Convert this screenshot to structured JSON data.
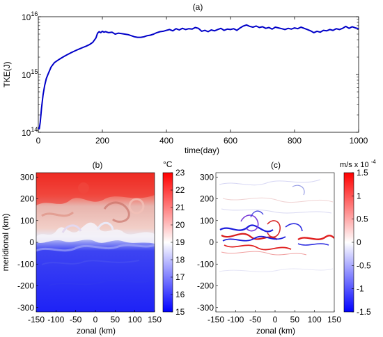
{
  "chart_data": [
    {
      "type": "line",
      "title": "(a)",
      "xlabel": "time(day)",
      "ylabel": "TKE(J)",
      "xlim": [
        0,
        1000
      ],
      "ylim": [
        100000000000000.0,
        1e+16
      ],
      "yscale": "log",
      "grid": false,
      "xticks": [
        "0",
        "200",
        "400",
        "600",
        "800",
        "1000"
      ],
      "yticks": [
        {
          "base": "10",
          "exp": "14"
        },
        {
          "base": "10",
          "exp": "15"
        },
        {
          "base": "10",
          "exp": "16"
        }
      ],
      "series": [
        {
          "color": "#0000c8",
          "x": [
            0,
            3,
            6,
            10,
            15,
            20,
            25,
            30,
            40,
            50,
            60,
            70,
            80,
            90,
            100,
            110,
            120,
            130,
            140,
            150,
            160,
            170,
            180,
            185,
            190,
            195,
            200,
            205,
            210,
            220,
            230,
            240,
            250,
            260,
            270,
            280,
            290,
            300,
            310,
            320,
            330,
            340,
            350,
            360,
            370,
            380,
            390,
            400,
            410,
            420,
            430,
            440,
            450,
            460,
            470,
            480,
            490,
            500,
            510,
            520,
            530,
            540,
            550,
            560,
            570,
            580,
            590,
            600,
            610,
            620,
            630,
            640,
            650,
            660,
            670,
            680,
            690,
            700,
            710,
            720,
            730,
            740,
            750,
            760,
            770,
            780,
            790,
            800,
            810,
            820,
            830,
            840,
            850,
            860,
            870,
            880,
            890,
            900,
            910,
            920,
            930,
            940,
            950,
            960,
            970,
            980,
            990,
            1000
          ],
          "y": [
            120000000000000.0,
            115000000000000.0,
            150000000000000.0,
            260000000000000.0,
            450000000000000.0,
            650000000000000.0,
            850000000000000.0,
            1000000000000000.0,
            1350000000000000.0,
            1600000000000000.0,
            1750000000000000.0,
            1900000000000000.0,
            2050000000000000.0,
            2200000000000000.0,
            2350000000000000.0,
            2500000000000000.0,
            2650000000000000.0,
            2800000000000000.0,
            2950000000000000.0,
            3100000000000000.0,
            3300000000000000.0,
            3600000000000000.0,
            4300000000000000.0,
            5200000000000000.0,
            5500000000000000.0,
            5300000000000000.0,
            5600000000000000.0,
            5400000000000000.0,
            5500000000000000.0,
            5300000000000000.0,
            5400000000000000.0,
            5000000000000000.0,
            5200000000000000.0,
            5100000000000000.0,
            5000000000000000.0,
            4900000000000000.0,
            4700000000000000.0,
            4500000000000000.0,
            4400000000000000.0,
            4400000000000000.0,
            4500000000000000.0,
            4700000000000000.0,
            4800000000000000.0,
            5000000000000000.0,
            5300000000000000.0,
            5500000000000000.0,
            5600000000000000.0,
            5800000000000000.0,
            6000000000000000.0,
            5700000000000000.0,
            6200000000000000.0,
            5900000000000000.0,
            6300000000000000.0,
            6000000000000000.0,
            6200000000000000.0,
            6100000000000000.0,
            6500000000000000.0,
            6300000000000000.0,
            5600000000000000.0,
            5800000000000000.0,
            5500000000000000.0,
            5900000000000000.0,
            5700000000000000.0,
            6000000000000000.0,
            6300000000000000.0,
            5800000000000000.0,
            6100000000000000.0,
            6000000000000000.0,
            6200000000000000.0,
            5800000000000000.0,
            6400000000000000.0,
            6900000000000000.0,
            7200000000000000.0,
            6800000000000000.0,
            6600000000000000.0,
            6900000000000000.0,
            6500000000000000.0,
            6700000000000000.0,
            6300000000000000.0,
            6500000000000000.0,
            6100000000000000.0,
            6600000000000000.0,
            6400000000000000.0,
            6200000000000000.0,
            6000000000000000.0,
            6300000000000000.0,
            6100000000000000.0,
            6400000000000000.0,
            6200000000000000.0,
            6600000000000000.0,
            6300000000000000.0,
            6000000000000000.0,
            5700000000000000.0,
            5300000000000000.0,
            5600000000000000.0,
            5400000000000000.0,
            5800000000000000.0,
            5700000000000000.0,
            6000000000000000.0,
            5800000000000000.0,
            6200000000000000.0,
            6000000000000000.0,
            6300000000000000.0,
            6800000000000000.0,
            6300000000000000.0,
            6700000000000000.0,
            6400000000000000.0,
            6200000000000000.0
          ]
        }
      ]
    },
    {
      "type": "heatmap",
      "title": "(b)",
      "xlabel": "zonal (km)",
      "ylabel": "meridional (km)",
      "xlim": [
        -150,
        150
      ],
      "ylim": [
        -320,
        320
      ],
      "xticks": [
        "-150",
        "-100",
        "-50",
        "0",
        "50",
        "100",
        "150"
      ],
      "yticks": [
        "300",
        "200",
        "100",
        "0",
        "-100",
        "-200",
        "-300"
      ],
      "colorbar": {
        "unit": "°C",
        "ticks": [
          "23",
          "22",
          "21",
          "20",
          "19",
          "18",
          "17",
          "16",
          "15"
        ],
        "range": [
          15,
          23
        ],
        "colors": [
          "#0000ff",
          "#ffffff",
          "#ff0000"
        ]
      }
    },
    {
      "type": "heatmap",
      "title": "(c)",
      "xlabel": "zonal (km)",
      "ylabel": "",
      "xlim": [
        -150,
        150
      ],
      "ylim": [
        -320,
        320
      ],
      "xticks": [
        "-150",
        "-100",
        "-50",
        "0",
        "50",
        "100",
        "150"
      ],
      "yticks": [
        "300",
        "200",
        "100",
        "0",
        "-100",
        "-200",
        "-300"
      ],
      "colorbar": {
        "unit": "m/s x 10",
        "unit_exp": "-4",
        "ticks": [
          "1.5",
          "1",
          "0.5",
          "0",
          "-0.5",
          "-1",
          "-1.5"
        ],
        "range": [
          -1.5,
          1.5
        ],
        "colors": [
          "#0000ff",
          "#ffffff",
          "#ff0000"
        ]
      }
    }
  ]
}
